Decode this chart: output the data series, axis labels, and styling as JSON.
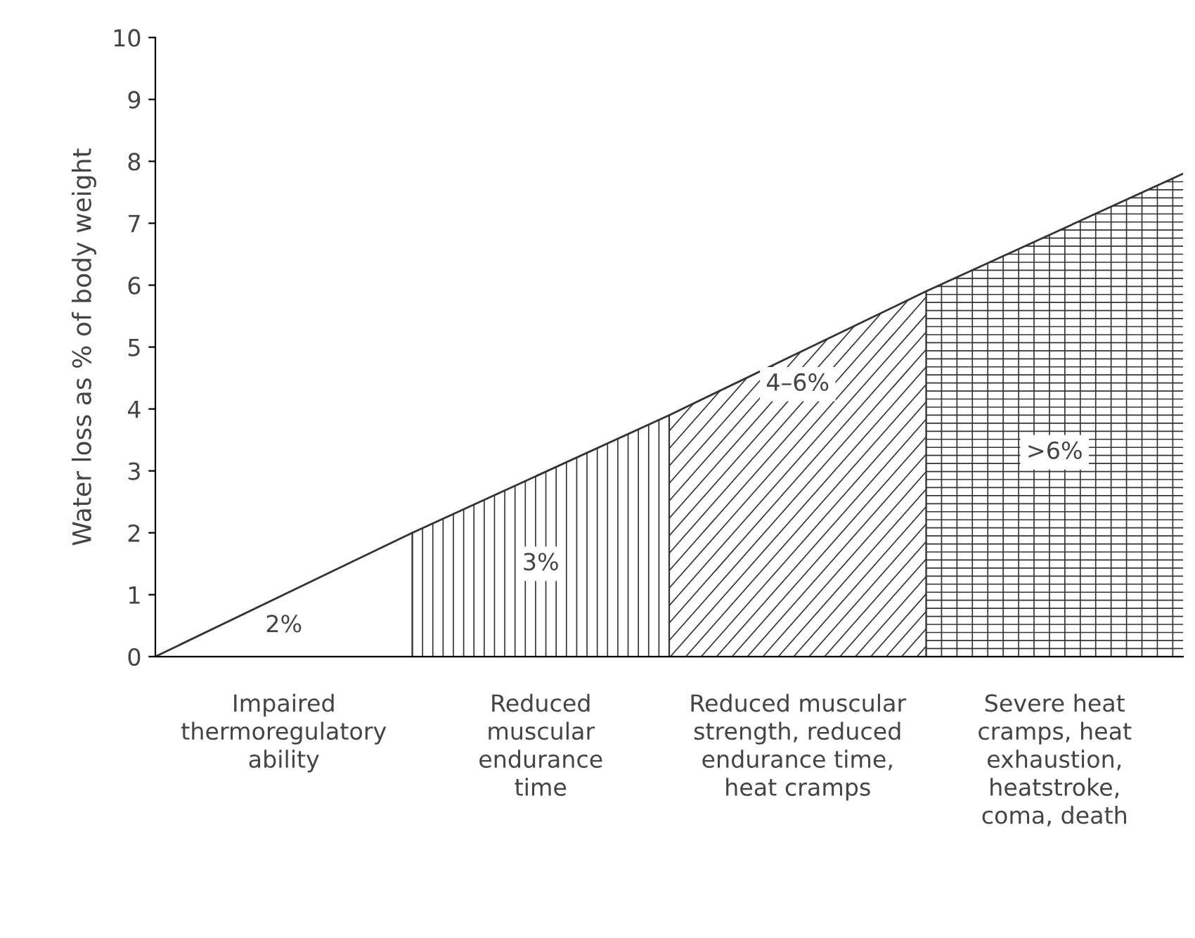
{
  "chart_data": {
    "type": "area",
    "ylabel": "Water loss as % of body weight",
    "categories": [
      null,
      null,
      null,
      null,
      null
    ],
    "series": [
      {
        "color": "#333333",
        "values": [
          0,
          2,
          3.9,
          5.9,
          7.8
        ]
      }
    ],
    "annotations": [
      "2%",
      "3%",
      "4–6%",
      ">6%",
      "Impaired\nthermoregulatory\nability",
      "Reduced\nmuscular\nendurance\ntime",
      "Reduced muscular\nstrength, reduced\nendurance time,\nheat cramps",
      "Severe heat\ncramps, heat\nexhaustion,\nheatstroke,\ncoma, death"
    ],
    "ylim": [
      0,
      10
    ],
    "yticks": [
      0,
      1,
      2,
      3,
      4,
      5,
      6,
      7,
      8,
      9,
      10
    ],
    "grid": false,
    "legend": false,
    "marker": "none",
    "line_style": "solid"
  }
}
